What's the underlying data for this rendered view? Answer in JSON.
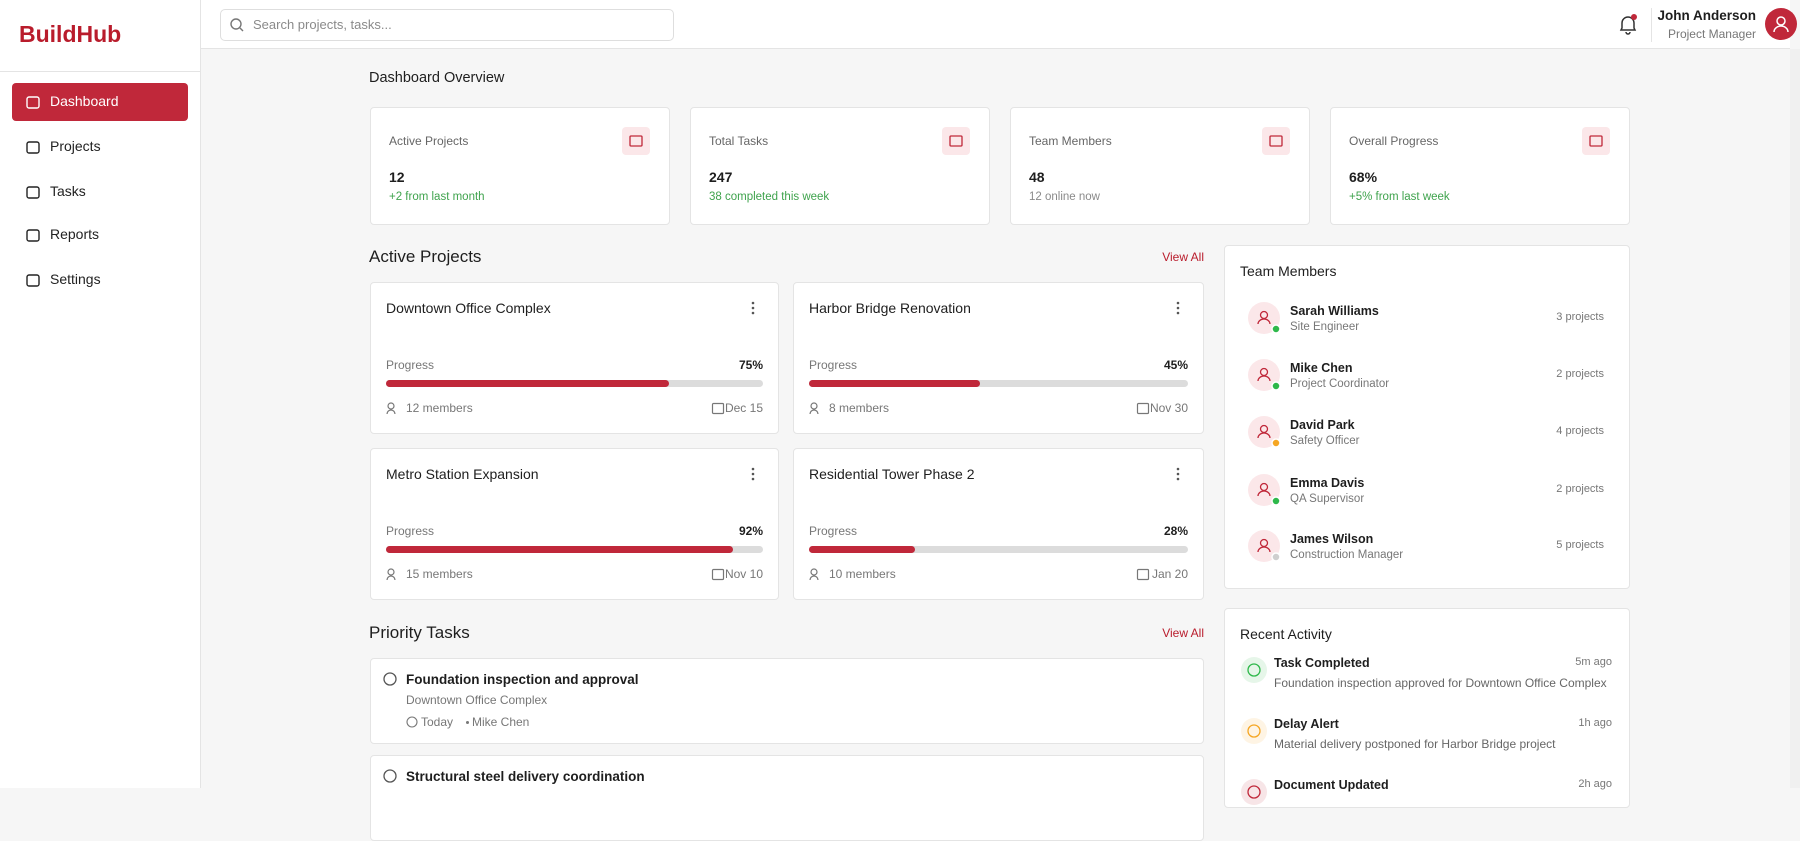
{
  "brand": "BuildHub",
  "search_placeholder": "Search projects, tasks...",
  "user": {
    "name": "John Anderson",
    "role": "Project Manager"
  },
  "nav": [
    {
      "label": "Dashboard",
      "active": true
    },
    {
      "label": "Projects",
      "active": false
    },
    {
      "label": "Tasks",
      "active": false
    },
    {
      "label": "Reports",
      "active": false
    },
    {
      "label": "Settings",
      "active": false
    }
  ],
  "page_title": "Dashboard Overview",
  "stats": [
    {
      "label": "Active Projects",
      "value": 12,
      "note": "+2 from last month",
      "note_color": "#3fa34d"
    },
    {
      "label": "Total Tasks",
      "value": 247,
      "note": "38 completed this week",
      "note_color": "#3fa34d"
    },
    {
      "label": "Team Members",
      "value": 48,
      "note": "12 online now",
      "note_color": "#8a8a8a"
    },
    {
      "label": "Overall Progress",
      "value": "68%",
      "note": "+5% from last week",
      "note_color": "#3fa34d"
    }
  ],
  "projects": {
    "title": "Active Projects",
    "view_all": "View All",
    "progress_label": "Progress",
    "items": [
      {
        "name": "Downtown Office Complex",
        "progress": 75,
        "progress_text": "75%",
        "members": "12 members",
        "due": "Dec 15"
      },
      {
        "name": "Harbor Bridge Renovation",
        "progress": 45,
        "progress_text": "45%",
        "members": "8 members",
        "due": "Nov 30"
      },
      {
        "name": "Metro Station Expansion",
        "progress": 92,
        "progress_text": "92%",
        "members": "15 members",
        "due": "Nov 10"
      },
      {
        "name": "Residential Tower Phase 2",
        "progress": 28,
        "progress_text": "28%",
        "members": "10 members",
        "due": "Jan 20"
      }
    ]
  },
  "tasks": {
    "title": "Priority Tasks",
    "view_all": "View All",
    "items": [
      {
        "title": "Foundation inspection and approval",
        "project": "Downtown Office Complex",
        "due": "Today",
        "assignee": "Mike Chen"
      },
      {
        "title": "Structural steel delivery coordination"
      }
    ]
  },
  "team": {
    "title": "Team Members",
    "members": [
      {
        "name": "Sarah Williams",
        "role": "Site Engineer",
        "projects": "3 projects",
        "status_color": "#2eb84a"
      },
      {
        "name": "Mike Chen",
        "role": "Project Coordinator",
        "projects": "2 projects",
        "status_color": "#2eb84a"
      },
      {
        "name": "David Park",
        "role": "Safety Officer",
        "projects": "4 projects",
        "status_color": "#f5a623"
      },
      {
        "name": "Emma Davis",
        "role": "QA Supervisor",
        "projects": "2 projects",
        "status_color": "#2eb84a"
      },
      {
        "name": "James Wilson",
        "role": "Construction Manager",
        "projects": "5 projects",
        "status_color": "#cfcfcf"
      }
    ]
  },
  "activity": {
    "title": "Recent Activity",
    "items": [
      {
        "title": "Task Completed",
        "time": "5m ago",
        "text": "Foundation inspection approved for Downtown Office Complex",
        "color": "#2eb84a"
      },
      {
        "title": "Delay Alert",
        "time": "1h ago",
        "text": "Material delivery postponed for Harbor Bridge project",
        "color": "#f5a623"
      },
      {
        "title": "Document Updated",
        "time": "2h ago",
        "color": "#c0283a"
      }
    ]
  }
}
